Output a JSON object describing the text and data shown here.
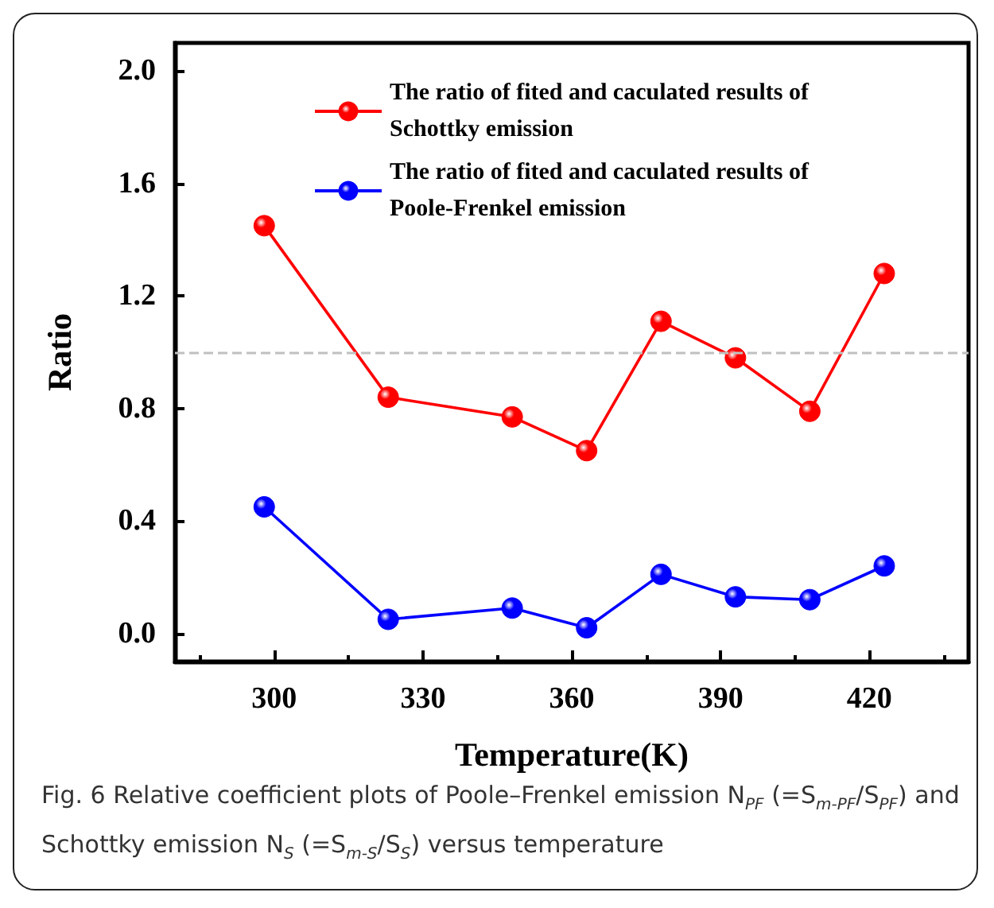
{
  "chart_data": {
    "type": "line",
    "xlabel": "Temperature(K)",
    "ylabel": "Ratio",
    "x": [
      298,
      323,
      348,
      363,
      378,
      393,
      408,
      423
    ],
    "series": [
      {
        "name": "The ratio of fited and caculated results of Schottky emission",
        "color": "#ff0000",
        "values": [
          1.45,
          0.84,
          0.77,
          0.65,
          1.11,
          0.98,
          0.79,
          1.28
        ]
      },
      {
        "name": "The ratio of fited and caculated results of Poole-Frenkel emission",
        "color": "#0000ff",
        "values": [
          0.45,
          0.05,
          0.09,
          0.02,
          0.21,
          0.13,
          0.12,
          0.24
        ]
      }
    ],
    "xlim": [
      280,
      440
    ],
    "xticks": [
      300,
      330,
      360,
      390,
      420
    ],
    "ylim": [
      -0.1,
      2.1
    ],
    "yticks": [
      {
        "value": 0,
        "label": "0.0"
      },
      {
        "value": 0.4,
        "label": "0.4"
      },
      {
        "value": 0.8,
        "label": "0.8"
      },
      {
        "value": 1.2,
        "label": "1.2"
      },
      {
        "value": 1.6,
        "label": "1.6"
      },
      {
        "value": 2,
        "label": "2.0"
      }
    ],
    "ref_lines": [
      {
        "axis": "y",
        "value": 1.0,
        "color": "#c0c0c0",
        "line_style": "dashed"
      }
    ],
    "annotations": [
      "Fig. 6 Relative coefficient plots of Poole–Frenkel emission N$_{PF}$ (=S$_{m-PF}$/S$_{PF}$) and Schottky emission N$_{S}$ (=S$_{m-S}$/S$_{S}$) versus temperature"
    ],
    "marker": "circle",
    "line_style": "solid",
    "grid": false,
    "legend": "top right"
  }
}
